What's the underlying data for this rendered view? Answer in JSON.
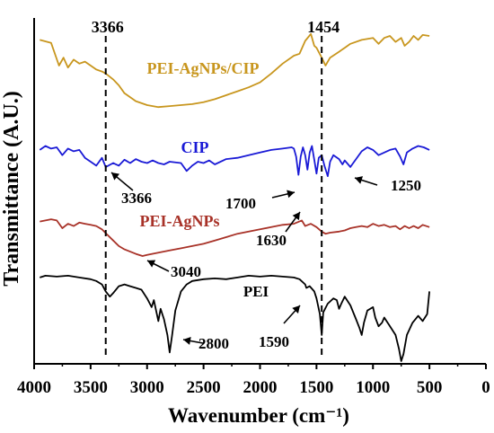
{
  "chart_data": {
    "type": "line",
    "title": "",
    "xlabel": "Wavenumber (cm⁻¹)",
    "ylabel": "Transmittance (A.U.)",
    "xlim": [
      4000,
      0
    ],
    "x_reversed": true,
    "x_ticks": [
      4000,
      3500,
      3000,
      2500,
      2000,
      1500,
      1000,
      500,
      0
    ],
    "y_ticks": [],
    "grid": false,
    "series": [
      {
        "name": "PEI-AgNPs/CIP",
        "color": "#c8961e",
        "points": [
          [
            3950,
            0.96
          ],
          [
            3850,
            0.93
          ],
          [
            3780,
            0.7
          ],
          [
            3740,
            0.78
          ],
          [
            3700,
            0.68
          ],
          [
            3650,
            0.76
          ],
          [
            3600,
            0.72
          ],
          [
            3550,
            0.74
          ],
          [
            3500,
            0.7
          ],
          [
            3450,
            0.66
          ],
          [
            3400,
            0.64
          ],
          [
            3366,
            0.62
          ],
          [
            3300,
            0.56
          ],
          [
            3250,
            0.5
          ],
          [
            3200,
            0.42
          ],
          [
            3100,
            0.34
          ],
          [
            3000,
            0.3
          ],
          [
            2900,
            0.28
          ],
          [
            2800,
            0.29
          ],
          [
            2700,
            0.3
          ],
          [
            2600,
            0.31
          ],
          [
            2500,
            0.33
          ],
          [
            2400,
            0.36
          ],
          [
            2300,
            0.4
          ],
          [
            2200,
            0.44
          ],
          [
            2100,
            0.48
          ],
          [
            2000,
            0.53
          ],
          [
            1900,
            0.62
          ],
          [
            1800,
            0.72
          ],
          [
            1700,
            0.8
          ],
          [
            1650,
            0.82
          ],
          [
            1600,
            0.95
          ],
          [
            1550,
            1.02
          ],
          [
            1520,
            0.9
          ],
          [
            1500,
            0.88
          ],
          [
            1454,
            0.78
          ],
          [
            1420,
            0.7
          ],
          [
            1380,
            0.78
          ],
          [
            1300,
            0.84
          ],
          [
            1250,
            0.88
          ],
          [
            1200,
            0.92
          ],
          [
            1100,
            0.96
          ],
          [
            1000,
            0.98
          ],
          [
            950,
            0.92
          ],
          [
            900,
            0.98
          ],
          [
            850,
            1.0
          ],
          [
            800,
            0.94
          ],
          [
            750,
            0.98
          ],
          [
            720,
            0.9
          ],
          [
            680,
            0.94
          ],
          [
            640,
            1.0
          ],
          [
            600,
            0.96
          ],
          [
            560,
            1.01
          ],
          [
            500,
            1.0
          ]
        ]
      },
      {
        "name": "CIP",
        "color": "#1a1ad6",
        "points": [
          [
            3950,
            0.7
          ],
          [
            3900,
            0.76
          ],
          [
            3850,
            0.72
          ],
          [
            3800,
            0.74
          ],
          [
            3750,
            0.62
          ],
          [
            3700,
            0.72
          ],
          [
            3650,
            0.68
          ],
          [
            3600,
            0.7
          ],
          [
            3550,
            0.58
          ],
          [
            3500,
            0.52
          ],
          [
            3450,
            0.46
          ],
          [
            3400,
            0.58
          ],
          [
            3366,
            0.44
          ],
          [
            3300,
            0.5
          ],
          [
            3250,
            0.46
          ],
          [
            3200,
            0.55
          ],
          [
            3150,
            0.5
          ],
          [
            3100,
            0.56
          ],
          [
            3050,
            0.52
          ],
          [
            3000,
            0.5
          ],
          [
            2950,
            0.54
          ],
          [
            2900,
            0.5
          ],
          [
            2850,
            0.48
          ],
          [
            2800,
            0.52
          ],
          [
            2700,
            0.5
          ],
          [
            2650,
            0.38
          ],
          [
            2600,
            0.46
          ],
          [
            2550,
            0.52
          ],
          [
            2500,
            0.5
          ],
          [
            2450,
            0.54
          ],
          [
            2400,
            0.48
          ],
          [
            2300,
            0.56
          ],
          [
            2200,
            0.58
          ],
          [
            2100,
            0.62
          ],
          [
            2000,
            0.66
          ],
          [
            1900,
            0.7
          ],
          [
            1800,
            0.72
          ],
          [
            1720,
            0.74
          ],
          [
            1700,
            0.72
          ],
          [
            1680,
            0.6
          ],
          [
            1660,
            0.32
          ],
          [
            1640,
            0.6
          ],
          [
            1620,
            0.74
          ],
          [
            1600,
            0.62
          ],
          [
            1580,
            0.4
          ],
          [
            1560,
            0.66
          ],
          [
            1540,
            0.76
          ],
          [
            1520,
            0.55
          ],
          [
            1500,
            0.34
          ],
          [
            1480,
            0.58
          ],
          [
            1454,
            0.62
          ],
          [
            1430,
            0.46
          ],
          [
            1400,
            0.3
          ],
          [
            1380,
            0.52
          ],
          [
            1350,
            0.62
          ],
          [
            1300,
            0.56
          ],
          [
            1270,
            0.48
          ],
          [
            1250,
            0.54
          ],
          [
            1200,
            0.44
          ],
          [
            1150,
            0.56
          ],
          [
            1100,
            0.68
          ],
          [
            1050,
            0.74
          ],
          [
            1000,
            0.7
          ],
          [
            950,
            0.62
          ],
          [
            900,
            0.66
          ],
          [
            850,
            0.7
          ],
          [
            800,
            0.72
          ],
          [
            760,
            0.6
          ],
          [
            730,
            0.48
          ],
          [
            700,
            0.66
          ],
          [
            650,
            0.72
          ],
          [
            600,
            0.76
          ],
          [
            550,
            0.74
          ],
          [
            500,
            0.7
          ]
        ]
      },
      {
        "name": "PEI-AgNPs",
        "color": "#a83228",
        "points": [
          [
            3950,
            0.7
          ],
          [
            3900,
            0.72
          ],
          [
            3850,
            0.74
          ],
          [
            3800,
            0.72
          ],
          [
            3750,
            0.58
          ],
          [
            3700,
            0.66
          ],
          [
            3650,
            0.62
          ],
          [
            3600,
            0.68
          ],
          [
            3550,
            0.66
          ],
          [
            3500,
            0.64
          ],
          [
            3450,
            0.62
          ],
          [
            3400,
            0.56
          ],
          [
            3350,
            0.46
          ],
          [
            3300,
            0.36
          ],
          [
            3250,
            0.26
          ],
          [
            3200,
            0.2
          ],
          [
            3100,
            0.12
          ],
          [
            3040,
            0.08
          ],
          [
            3000,
            0.1
          ],
          [
            2900,
            0.14
          ],
          [
            2800,
            0.18
          ],
          [
            2700,
            0.22
          ],
          [
            2600,
            0.26
          ],
          [
            2500,
            0.3
          ],
          [
            2400,
            0.36
          ],
          [
            2300,
            0.42
          ],
          [
            2200,
            0.48
          ],
          [
            2100,
            0.52
          ],
          [
            2000,
            0.56
          ],
          [
            1900,
            0.6
          ],
          [
            1800,
            0.64
          ],
          [
            1700,
            0.66
          ],
          [
            1630,
            0.72
          ],
          [
            1600,
            0.62
          ],
          [
            1550,
            0.66
          ],
          [
            1500,
            0.6
          ],
          [
            1454,
            0.52
          ],
          [
            1420,
            0.48
          ],
          [
            1380,
            0.5
          ],
          [
            1300,
            0.52
          ],
          [
            1250,
            0.54
          ],
          [
            1200,
            0.58
          ],
          [
            1150,
            0.6
          ],
          [
            1100,
            0.62
          ],
          [
            1050,
            0.6
          ],
          [
            1000,
            0.66
          ],
          [
            950,
            0.62
          ],
          [
            900,
            0.64
          ],
          [
            850,
            0.6
          ],
          [
            800,
            0.62
          ],
          [
            760,
            0.56
          ],
          [
            720,
            0.62
          ],
          [
            680,
            0.58
          ],
          [
            640,
            0.62
          ],
          [
            600,
            0.58
          ],
          [
            560,
            0.64
          ],
          [
            500,
            0.6
          ]
        ]
      },
      {
        "name": "PEI",
        "color": "#000000",
        "points": [
          [
            3950,
            0.96
          ],
          [
            3900,
            0.98
          ],
          [
            3800,
            0.97
          ],
          [
            3700,
            0.98
          ],
          [
            3600,
            0.96
          ],
          [
            3500,
            0.94
          ],
          [
            3450,
            0.92
          ],
          [
            3400,
            0.88
          ],
          [
            3366,
            0.8
          ],
          [
            3330,
            0.74
          ],
          [
            3300,
            0.78
          ],
          [
            3250,
            0.86
          ],
          [
            3200,
            0.88
          ],
          [
            3150,
            0.86
          ],
          [
            3100,
            0.84
          ],
          [
            3050,
            0.82
          ],
          [
            3000,
            0.72
          ],
          [
            2960,
            0.62
          ],
          [
            2940,
            0.7
          ],
          [
            2900,
            0.46
          ],
          [
            2880,
            0.6
          ],
          [
            2850,
            0.48
          ],
          [
            2820,
            0.3
          ],
          [
            2800,
            0.1
          ],
          [
            2780,
            0.28
          ],
          [
            2750,
            0.58
          ],
          [
            2700,
            0.8
          ],
          [
            2650,
            0.88
          ],
          [
            2600,
            0.92
          ],
          [
            2500,
            0.94
          ],
          [
            2400,
            0.95
          ],
          [
            2300,
            0.94
          ],
          [
            2200,
            0.96
          ],
          [
            2100,
            0.98
          ],
          [
            2000,
            0.97
          ],
          [
            1900,
            0.98
          ],
          [
            1800,
            0.97
          ],
          [
            1700,
            0.96
          ],
          [
            1650,
            0.94
          ],
          [
            1600,
            0.88
          ],
          [
            1590,
            0.84
          ],
          [
            1560,
            0.86
          ],
          [
            1520,
            0.8
          ],
          [
            1500,
            0.72
          ],
          [
            1470,
            0.54
          ],
          [
            1454,
            0.3
          ],
          [
            1440,
            0.56
          ],
          [
            1400,
            0.66
          ],
          [
            1350,
            0.72
          ],
          [
            1320,
            0.7
          ],
          [
            1300,
            0.6
          ],
          [
            1280,
            0.66
          ],
          [
            1250,
            0.74
          ],
          [
            1200,
            0.64
          ],
          [
            1150,
            0.48
          ],
          [
            1120,
            0.38
          ],
          [
            1100,
            0.3
          ],
          [
            1080,
            0.44
          ],
          [
            1050,
            0.58
          ],
          [
            1000,
            0.62
          ],
          [
            980,
            0.5
          ],
          [
            950,
            0.4
          ],
          [
            920,
            0.44
          ],
          [
            900,
            0.5
          ],
          [
            860,
            0.42
          ],
          [
            800,
            0.3
          ],
          [
            770,
            0.14
          ],
          [
            750,
            0.0
          ],
          [
            730,
            0.08
          ],
          [
            700,
            0.3
          ],
          [
            650,
            0.44
          ],
          [
            600,
            0.52
          ],
          [
            560,
            0.46
          ],
          [
            520,
            0.54
          ],
          [
            500,
            0.8
          ]
        ]
      }
    ],
    "annotations": [
      {
        "text": "3366",
        "x": 3366,
        "kind": "dashed-line-label"
      },
      {
        "text": "1454",
        "x": 1454,
        "kind": "dashed-line-label"
      },
      {
        "text": "3366",
        "x": 3366,
        "series": "CIP",
        "kind": "arrow-label"
      },
      {
        "text": "1700",
        "x": 1700,
        "series": "CIP",
        "kind": "arrow-label"
      },
      {
        "text": "1250",
        "x": 1250,
        "series": "CIP",
        "kind": "arrow-label"
      },
      {
        "text": "1630",
        "x": 1630,
        "series": "PEI-AgNPs",
        "kind": "arrow-label"
      },
      {
        "text": "3040",
        "x": 3040,
        "series": "PEI-AgNPs",
        "kind": "arrow-label"
      },
      {
        "text": "2800",
        "x": 2800,
        "series": "PEI",
        "kind": "arrow-label"
      },
      {
        "text": "1590",
        "x": 1590,
        "series": "PEI",
        "kind": "arrow-label"
      }
    ]
  }
}
